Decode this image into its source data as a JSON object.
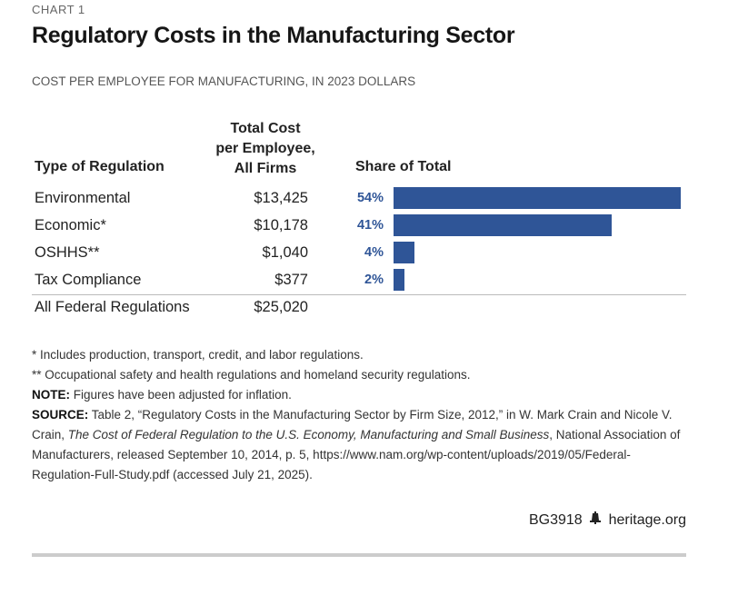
{
  "chart_label": "CHART 1",
  "title": "Regulatory Costs in the Manufacturing Sector",
  "subtitle": "COST PER EMPLOYEE FOR MANUFACTURING, IN 2023 DOLLARS",
  "chart_data": {
    "type": "table",
    "columns": [
      "Type of Regulation",
      "Total Cost per Employee, All Firms",
      "Share of Total"
    ],
    "column_header_lines": {
      "cost": [
        "Total Cost",
        "per Employee,",
        "All Firms"
      ]
    },
    "rows": [
      {
        "label": "Environmental",
        "cost": "$13,425",
        "share_label": "54%",
        "share": 54
      },
      {
        "label": "Economic*",
        "cost": "$10,178",
        "share_label": "41%",
        "share": 41
      },
      {
        "label": "OSHHS**",
        "cost": "$1,040",
        "share_label": "4%",
        "share": 4
      },
      {
        "label": "Tax Compliance",
        "cost": "$377",
        "share_label": "2%",
        "share": 2
      }
    ],
    "total": {
      "label": "All Federal Regulations",
      "cost": "$25,020"
    },
    "bar_color": "#2f5597"
  },
  "notes": {
    "note1": "* Includes production, transport, credit, and labor regulations.",
    "note2": "** Occupational safety and health regulations and homeland security regulations.",
    "note_label": "NOTE:",
    "note_text": " Figures have been adjusted for inflation.",
    "source_label": "SOURCE:",
    "source_text_1": " Table 2, “Regulatory Costs in the Manufacturing Sector by Firm Size, 2012,” in W. Mark Crain and Nicole V. Crain, ",
    "source_italic": "The Cost of Federal Regulation to the U.S. Economy, Manufacturing and Small Business",
    "source_text_2": ", National Association of Manufacturers, released September 10, 2014, p. 5, https://www.nam.org/wp-content/uploads/2019/05/Federal-Regulation-Full-Study.pdf (accessed July 21, 2025)."
  },
  "credit": {
    "code": "BG3918",
    "site": "heritage.org",
    "icon": "liberty-bell-icon"
  }
}
